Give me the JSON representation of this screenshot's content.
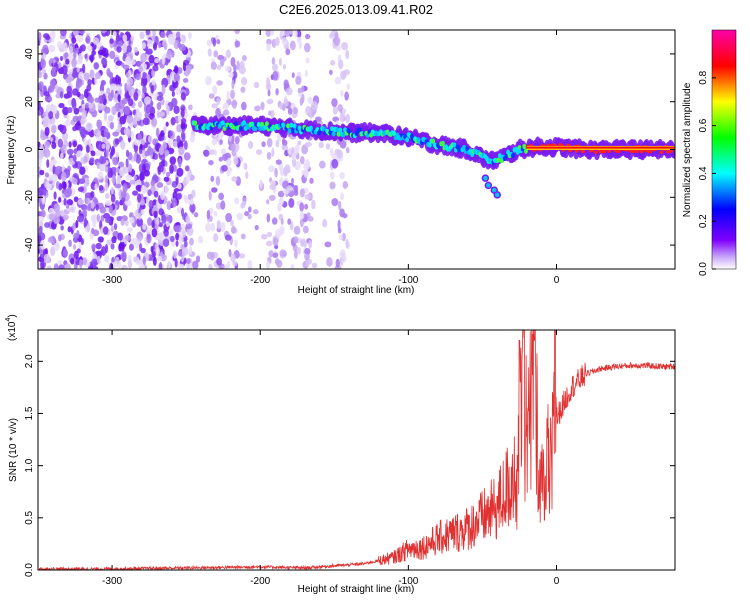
{
  "title": "C2E6.2025.013.09.41.R02",
  "chart_data": [
    {
      "type": "heatmap",
      "xlabel": "Height of straight line (km)",
      "ylabel": "Frequency (Hz)",
      "xlim": [
        -350,
        80
      ],
      "ylim": [
        -50,
        50
      ],
      "x_ticks": [
        -300,
        -200,
        -100,
        0
      ],
      "y_ticks": [
        -40,
        -20,
        0,
        20,
        40
      ],
      "colorbar": {
        "label": "Normalized spectral amplitude",
        "range": [
          0.0,
          1.0
        ],
        "ticks": [
          "0.0",
          "0.2",
          "0.4",
          "0.6",
          "0.8"
        ],
        "colormap": [
          "#ffffff",
          "#8000ff",
          "#0000ff",
          "#00ffff",
          "#00ff00",
          "#ffff00",
          "#ff0000",
          "#ff00aa"
        ]
      },
      "dominant_frequency_track": {
        "x": [
          -245,
          -220,
          -200,
          -180,
          -160,
          -140,
          -120,
          -100,
          -80,
          -60,
          -45,
          -35,
          -25,
          -15,
          0,
          20,
          40,
          60,
          80
        ],
        "y": [
          10,
          10,
          10,
          9,
          8,
          7,
          7,
          5,
          2,
          0,
          -5,
          -3,
          0,
          1,
          1,
          0,
          0,
          0,
          0
        ]
      },
      "background_noise_region_km": [
        -350,
        -140
      ]
    },
    {
      "type": "line",
      "xlabel": "Height of straight line (km)",
      "ylabel": "SNR (10 * v/v)",
      "y_multiplier": "(x10",
      "y_multiplier_exp": "4",
      "xlim": [
        -350,
        80
      ],
      "ylim": [
        0,
        2.3
      ],
      "x_ticks": [
        -300,
        -200,
        -100,
        0
      ],
      "y_ticks": [
        "0.0",
        "0.5",
        "1.0",
        "1.5",
        "2.0"
      ],
      "color": "#e03030",
      "series": [
        {
          "x": [
            -350,
            -300,
            -250,
            -200,
            -170,
            -150,
            -130,
            -110,
            -100,
            -90,
            -80,
            -70,
            -60,
            -50,
            -40,
            -35,
            -30,
            -25,
            -22,
            -20,
            -15,
            -12,
            -8,
            -5,
            0,
            5,
            10,
            20,
            30,
            40,
            50,
            60,
            70,
            80
          ],
          "y": [
            0.01,
            0.01,
            0.02,
            0.03,
            0.02,
            0.04,
            0.06,
            0.12,
            0.2,
            0.22,
            0.3,
            0.35,
            0.4,
            0.5,
            0.6,
            0.75,
            0.85,
            1.0,
            2.2,
            1.1,
            2.15,
            1.0,
            0.8,
            1.1,
            1.45,
            1.6,
            1.75,
            1.88,
            1.93,
            1.95,
            1.96,
            1.96,
            1.95,
            1.95
          ]
        }
      ]
    }
  ]
}
